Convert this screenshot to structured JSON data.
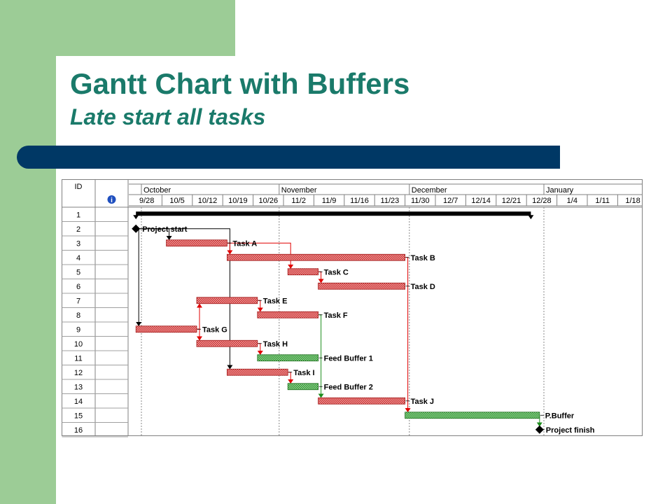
{
  "header": {
    "title": "Gantt Chart with Buffers",
    "subtitle": "Late start all tasks"
  },
  "colors": {
    "title": "#1a7a6a",
    "accent_green": "#9ccc96",
    "accent_navy": "#003865",
    "task_bar": "#e05050",
    "buffer_bar": "#4caf50",
    "link_red": "#e00000",
    "link_black": "#000000"
  },
  "chart_data": {
    "type": "gantt",
    "columns": {
      "id": "ID",
      "info_icon": "info-icon"
    },
    "months": [
      {
        "label": "October",
        "start": "2003-09-30"
      },
      {
        "label": "November",
        "start": "2003-11-01"
      },
      {
        "label": "December",
        "start": "2003-12-01"
      },
      {
        "label": "January",
        "start": "2004-01-01"
      }
    ],
    "weeks": [
      "9/28",
      "10/5",
      "10/12",
      "10/19",
      "10/26",
      "11/2",
      "11/9",
      "11/16",
      "11/23",
      "11/30",
      "12/7",
      "12/14",
      "12/21",
      "12/28",
      "1/4",
      "1/11",
      "1/18"
    ],
    "rows": [
      {
        "id": "1",
        "type": "summary",
        "label": "",
        "start": "2003-09-29",
        "end": "2003-12-29"
      },
      {
        "id": "2",
        "type": "milestone",
        "label": "Project start",
        "start": "2003-09-29"
      },
      {
        "id": "3",
        "type": "task",
        "label": "Task A",
        "start": "2003-10-06",
        "end": "2003-10-20"
      },
      {
        "id": "4",
        "type": "task",
        "label": "Task B",
        "start": "2003-10-20",
        "end": "2003-11-30"
      },
      {
        "id": "5",
        "type": "task",
        "label": "Task C",
        "start": "2003-11-03",
        "end": "2003-11-10"
      },
      {
        "id": "6",
        "type": "task",
        "label": "Task D",
        "start": "2003-11-10",
        "end": "2003-11-30"
      },
      {
        "id": "7",
        "type": "task",
        "label": "Task E",
        "start": "2003-10-13",
        "end": "2003-10-27"
      },
      {
        "id": "8",
        "type": "task",
        "label": "Task F",
        "start": "2003-10-27",
        "end": "2003-11-10"
      },
      {
        "id": "9",
        "type": "task",
        "label": "Task G",
        "start": "2003-09-29",
        "end": "2003-10-13"
      },
      {
        "id": "10",
        "type": "task",
        "label": "Task H",
        "start": "2003-10-13",
        "end": "2003-10-27"
      },
      {
        "id": "11",
        "type": "buffer",
        "label": "Feed Buffer 1",
        "start": "2003-10-27",
        "end": "2003-11-10"
      },
      {
        "id": "12",
        "type": "task",
        "label": "Task I",
        "start": "2003-10-20",
        "end": "2003-11-03"
      },
      {
        "id": "13",
        "type": "buffer",
        "label": "Feed Buffer 2",
        "start": "2003-11-03",
        "end": "2003-11-10"
      },
      {
        "id": "14",
        "type": "task",
        "label": "Task J",
        "start": "2003-11-10",
        "end": "2003-11-30"
      },
      {
        "id": "15",
        "type": "buffer",
        "label": "P.Buffer",
        "start": "2003-11-30",
        "end": "2003-12-31"
      },
      {
        "id": "16",
        "type": "milestone",
        "label": "Project finish",
        "start": "2003-12-31"
      }
    ],
    "dependencies": [
      {
        "from": "2",
        "to": "3",
        "color": "black"
      },
      {
        "from": "2",
        "to": "9",
        "color": "black"
      },
      {
        "from": "2",
        "to": "12",
        "color": "black"
      },
      {
        "from": "3",
        "to": "4",
        "color": "red"
      },
      {
        "from": "3",
        "to": "5",
        "color": "red"
      },
      {
        "from": "5",
        "to": "6",
        "color": "red"
      },
      {
        "from": "7",
        "to": "8",
        "color": "red"
      },
      {
        "from": "9",
        "to": "7",
        "color": "red"
      },
      {
        "from": "9",
        "to": "10",
        "color": "red"
      },
      {
        "from": "10",
        "to": "11",
        "color": "red"
      },
      {
        "from": "12",
        "to": "13",
        "color": "red"
      },
      {
        "from": "8",
        "to": "14",
        "color": "green"
      },
      {
        "from": "4",
        "to": "15",
        "color": "red"
      },
      {
        "from": "15",
        "to": "16",
        "color": "green"
      }
    ]
  }
}
